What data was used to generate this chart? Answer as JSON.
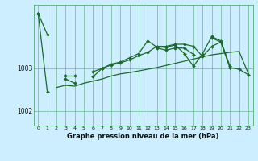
{
  "title": "Graphe pression niveau de la mer (hPa)",
  "bg_color": "#cceeff",
  "grid_color": "#55aa77",
  "line_color": "#1a6b2a",
  "xlim": [
    -0.5,
    23.5
  ],
  "ylim": [
    1001.65,
    1004.5
  ],
  "yticks": [
    1002,
    1003
  ],
  "xticks": [
    0,
    1,
    2,
    3,
    4,
    5,
    6,
    7,
    8,
    9,
    10,
    11,
    12,
    13,
    14,
    15,
    16,
    17,
    18,
    19,
    20,
    21,
    22,
    23
  ],
  "series_volatile": [
    1004.3,
    1002.45,
    null,
    1002.75,
    1002.65,
    null,
    1002.8,
    1003.0,
    1003.1,
    1003.15,
    1003.25,
    1003.35,
    1003.65,
    1003.5,
    1003.5,
    1003.55,
    1003.35,
    1003.05,
    1003.35,
    1003.75,
    1003.65,
    1003.05,
    null,
    null
  ],
  "series_smooth": [
    null,
    null,
    1002.55,
    1002.6,
    1002.58,
    1002.65,
    1002.7,
    1002.75,
    1002.82,
    1002.87,
    1002.9,
    1002.94,
    1002.98,
    1003.02,
    1003.07,
    1003.12,
    1003.17,
    1003.22,
    1003.27,
    1003.32,
    1003.35,
    1003.38,
    1003.4,
    1002.88
  ],
  "series_main": [
    1004.3,
    1003.8,
    null,
    1002.82,
    1002.82,
    null,
    1002.92,
    1003.0,
    1003.08,
    1003.13,
    1003.2,
    1003.3,
    1003.38,
    1003.52,
    1003.52,
    1003.57,
    1003.57,
    1003.52,
    1003.28,
    1003.52,
    1003.62,
    1003.02,
    1002.98,
    1002.85
  ],
  "series_extra": [
    null,
    null,
    null,
    null,
    null,
    null,
    null,
    null,
    null,
    null,
    null,
    null,
    null,
    1003.48,
    1003.43,
    1003.48,
    1003.48,
    1003.33,
    null,
    1003.72,
    1003.62,
    1003.02,
    null,
    null
  ]
}
